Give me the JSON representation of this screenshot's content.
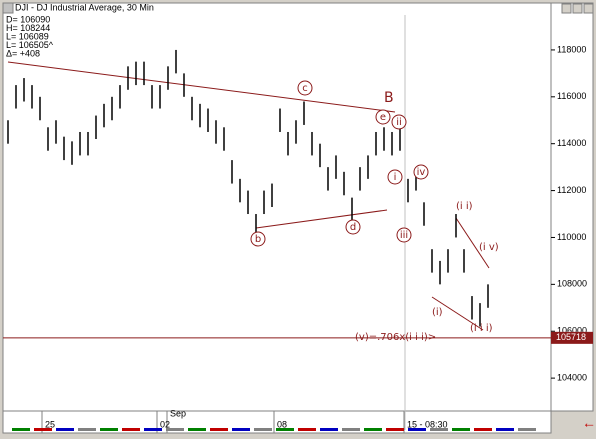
{
  "chart_data": {
    "type": "range",
    "title": "DJI - DJ Industrial Average, 30 Min",
    "info": [
      "D= 106090",
      "H= 108244",
      "L= 106089",
      "L= 106505^",
      "Δ= +408"
    ],
    "categories": [
      null,
      null,
      null,
      null,
      null,
      null,
      null,
      null,
      null,
      null,
      null,
      null,
      null,
      null,
      null,
      null,
      null,
      null,
      null,
      null,
      null,
      null,
      null,
      null,
      null,
      null,
      null,
      null,
      null,
      null,
      null,
      null,
      null,
      null,
      null,
      null,
      null,
      null,
      null,
      null,
      null,
      null,
      null,
      null,
      null,
      null,
      null,
      null,
      null,
      null,
      null,
      null,
      null,
      null,
      null,
      null,
      null,
      null,
      null,
      null,
      null
    ],
    "series": [
      {
        "name": "High",
        "color": "#000000",
        "values": [
          115000,
          116500,
          116800,
          116500,
          116000,
          114700,
          115000,
          114300,
          114100,
          114500,
          114500,
          115200,
          115700,
          116000,
          116500,
          117300,
          117500,
          117500,
          116500,
          116500,
          117300,
          118000,
          117000,
          116000,
          115700,
          115500,
          115000,
          114700,
          113300,
          112500,
          112000,
          111000,
          112000,
          112300,
          115500,
          114500,
          115000,
          115800,
          114500,
          114000,
          113000,
          113500,
          112800,
          111700,
          113000,
          113500,
          114500,
          114700,
          114500,
          114700,
          112500,
          113000,
          111500,
          109500,
          109000,
          109500,
          111000,
          109500,
          107500,
          107200,
          108000
        ]
      },
      {
        "name": "Low",
        "color": "#000000",
        "values": [
          114000,
          115500,
          115800,
          115500,
          115000,
          113700,
          114000,
          113300,
          113100,
          113500,
          113500,
          114200,
          114700,
          115000,
          115500,
          116300,
          116500,
          116500,
          115500,
          115500,
          116300,
          117000,
          116000,
          115000,
          114700,
          114500,
          114000,
          113700,
          112300,
          111500,
          111000,
          110000,
          111000,
          111300,
          114500,
          113500,
          114000,
          114800,
          113500,
          113000,
          112000,
          112500,
          111800,
          110700,
          112000,
          112500,
          113500,
          113700,
          113500,
          113700,
          111500,
          112000,
          110500,
          108500,
          108000,
          108500,
          110000,
          108500,
          106500,
          106200,
          107000
        ]
      }
    ],
    "x_labels": [
      "25",
      "Sep",
      "02",
      "08",
      "15 - 08:30"
    ],
    "ylim": [
      102640,
      119490
    ],
    "yticks": [
      104000,
      106000,
      108000,
      110000,
      112000,
      114000,
      116000,
      118000
    ],
    "last_price": 105718,
    "last_price_color": "#8b1a1a",
    "annotations": [
      "B",
      "c",
      "e",
      "ii",
      "i",
      "iv",
      "iii",
      "b",
      "d",
      "(i i)",
      "(i v)",
      "(i)",
      "(i i i)",
      "(v)=.706x(i i i)>"
    ]
  }
}
